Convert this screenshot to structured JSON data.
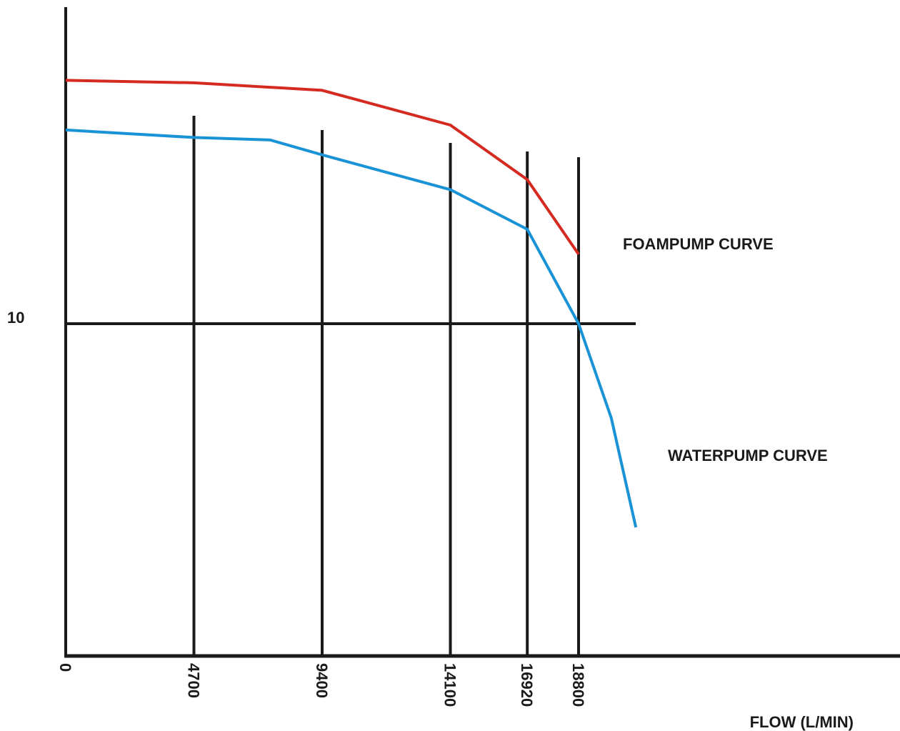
{
  "chart_data": {
    "type": "line",
    "title": "",
    "xlabel": "FLOW (L/MIN)",
    "ylabel": "",
    "x_ticks": [
      "0",
      "4700",
      "9400",
      "14100",
      "16920",
      "18800"
    ],
    "y_ticks": [
      "10"
    ],
    "series": [
      {
        "name": "FOAMPUMP CURVE",
        "color": "#d42a20",
        "x": [
          0,
          4700,
          9400,
          14100,
          16920,
          18800
        ],
        "y": [
          14.9,
          14.85,
          14.7,
          14.0,
          12.9,
          11.4
        ]
      },
      {
        "name": "WATERPUMP CURVE",
        "color": "#1a93d6",
        "x": [
          0,
          4700,
          7500,
          9400,
          14100,
          16920,
          18800,
          20000,
          20900
        ],
        "y": [
          13.9,
          13.75,
          13.7,
          13.4,
          12.7,
          11.9,
          10.0,
          8.1,
          5.9
        ]
      }
    ]
  }
}
